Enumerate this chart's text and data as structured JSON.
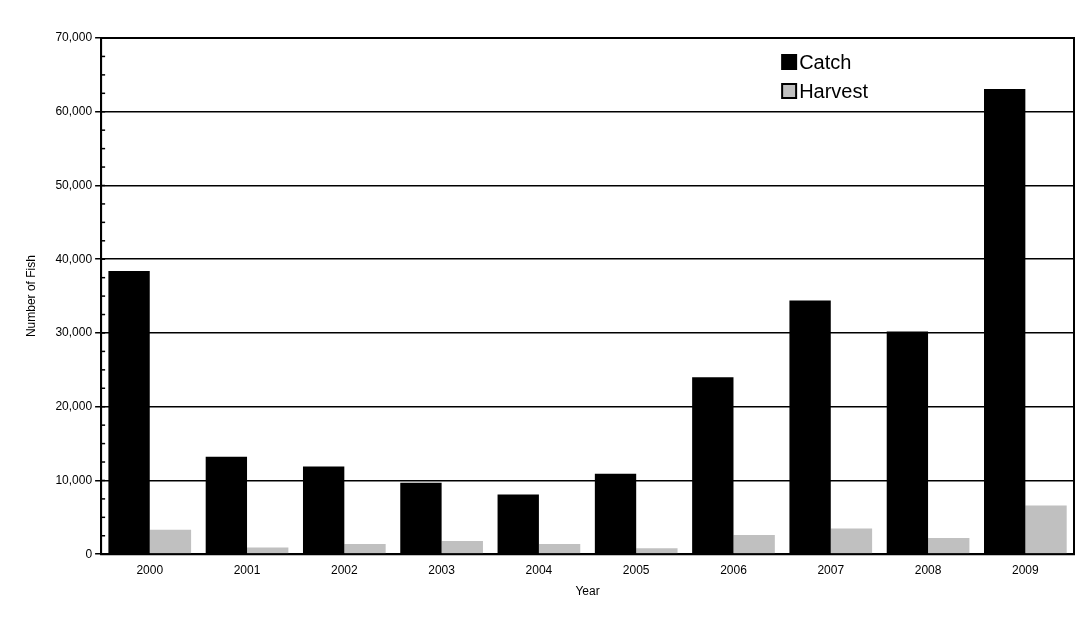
{
  "chart_data": {
    "type": "bar",
    "xlabel": "Year",
    "ylabel": "Number of Fish",
    "categories": [
      "2000",
      "2001",
      "2002",
      "2003",
      "2004",
      "2005",
      "2006",
      "2007",
      "2008",
      "2009"
    ],
    "series": [
      {
        "name": "Catch",
        "color": "#000000",
        "values": [
          38400,
          13200,
          11900,
          9700,
          8100,
          10900,
          24000,
          34400,
          30200,
          63100
        ]
      },
      {
        "name": "Harvest",
        "color": "#c0c0c0",
        "values": [
          3300,
          900,
          1400,
          1800,
          1400,
          800,
          2600,
          3500,
          2200,
          6600
        ]
      }
    ],
    "ylim": [
      0,
      70000
    ],
    "yticks": [
      {
        "value": 0,
        "label": "0"
      },
      {
        "value": 10000,
        "label": "10,000"
      },
      {
        "value": 20000,
        "label": "20,000"
      },
      {
        "value": 30000,
        "label": "30,000"
      },
      {
        "value": 40000,
        "label": "40,000"
      },
      {
        "value": 50000,
        "label": "50,000"
      },
      {
        "value": 60000,
        "label": "60,000"
      },
      {
        "value": 70000,
        "label": "70,000"
      }
    ],
    "grid": "y",
    "legend": "top right"
  }
}
